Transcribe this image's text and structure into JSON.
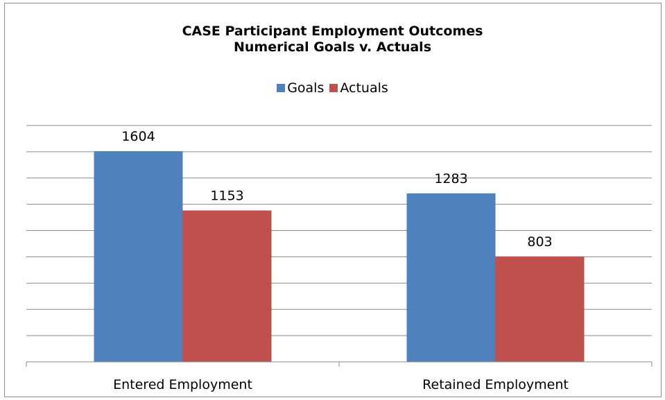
{
  "chart_data": {
    "type": "bar",
    "title_lines": [
      "CASE Participant Employment Outcomes",
      "Numerical Goals v. Actuals"
    ],
    "categories": [
      "Entered Employment",
      "Retained Employment"
    ],
    "series": [
      {
        "name": "Goals",
        "color": "#4f81bd",
        "values": [
          1604,
          1283
        ]
      },
      {
        "name": "Actuals",
        "color": "#c0504d",
        "values": [
          1153,
          803
        ]
      }
    ],
    "ylim": [
      0,
      1800
    ],
    "y_step": 200,
    "grid": true,
    "legend_position": "top",
    "data_labels": true
  }
}
